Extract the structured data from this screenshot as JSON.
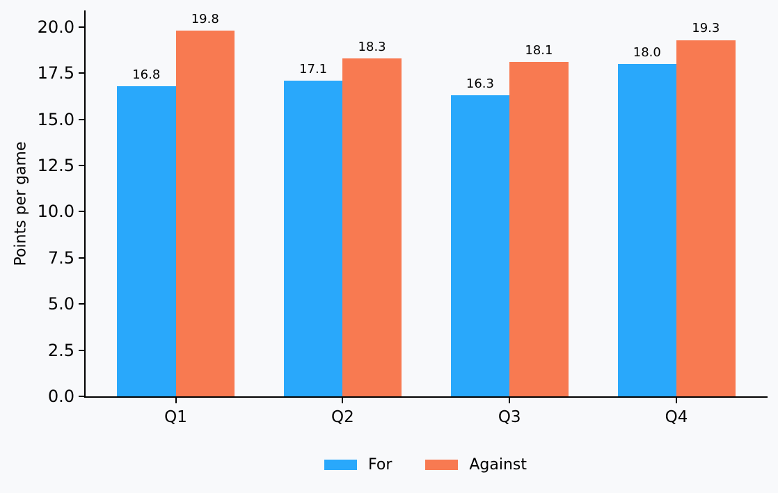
{
  "chart_data": {
    "type": "bar",
    "title": "",
    "xlabel": "",
    "ylabel": "Points per game",
    "categories": [
      "Q1",
      "Q2",
      "Q3",
      "Q4"
    ],
    "series": [
      {
        "name": "For",
        "color": "#29a8fb",
        "values": [
          16.8,
          17.1,
          16.3,
          18.0
        ]
      },
      {
        "name": "Against",
        "color": "#f87a51",
        "values": [
          19.8,
          18.3,
          18.1,
          19.3
        ]
      }
    ],
    "bar_value_labels": [
      "16.8",
      "17.1",
      "16.3",
      "18.0",
      "19.8",
      "18.3",
      "18.1",
      "19.3"
    ],
    "ylim": [
      0,
      20.9
    ],
    "yticks": [
      0.0,
      2.5,
      5.0,
      7.5,
      10.0,
      12.5,
      15.0,
      17.5,
      20.0
    ],
    "ytick_labels": [
      "0.0",
      "2.5",
      "5.0",
      "7.5",
      "10.0",
      "12.5",
      "15.0",
      "17.5",
      "20.0"
    ],
    "grid": false,
    "legend_position": "bottom-center",
    "background_color": "#f8f9fb",
    "axis_color": "#000000",
    "text_color": "#000000"
  }
}
